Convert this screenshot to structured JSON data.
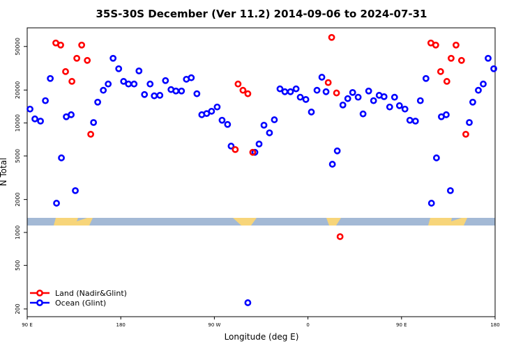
{
  "chart_data": {
    "type": "scatter",
    "title": "35S-30S December (Ver 11.2)   2014-09-06 to 2024-07-31",
    "x_label": "Longitude (deg E)",
    "y_label": "N Total",
    "xlim": [
      90,
      540
    ],
    "ylim": [
      170,
      74000
    ],
    "log_y": true,
    "legend": "bottom-left",
    "xticks": [
      {
        "value": 90,
        "label": "90 E"
      },
      180,
      {
        "value": 270,
        "label": "90 W"
      },
      {
        "value": 360,
        "label": "0"
      },
      {
        "value": 450,
        "label": "90 E"
      },
      {
        "value": 540,
        "label": "180"
      }
    ],
    "yticks": [
      200,
      500,
      1000,
      2000,
      5000,
      10000,
      20000,
      50000
    ],
    "series": [
      {
        "name": "Land (Nadir&Glint)",
        "color": "#ff0000",
        "x": [
          117.5,
          122.2,
          126.9,
          133.0,
          137.7,
          142.4,
          147.8,
          151.1,
          290.1,
          292.8,
          297.5,
          302.2,
          306.9,
          379.5,
          382.8,
          387.5,
          390.9,
          478.2,
          482.9,
          487.6,
          493.6,
          497.7,
          502.4,
          507.7,
          511.8
        ],
        "values": [
          53800,
          51500,
          29500,
          24000,
          39000,
          51500,
          37300,
          7890,
          5720,
          22700,
          19900,
          18500,
          5400,
          23400,
          60500,
          18800,
          916,
          53800,
          51500,
          29500,
          24000,
          39000,
          51500,
          37300,
          7890
        ]
      },
      {
        "name": "Ocean (Glint)",
        "color": "#0000ff",
        "x": [
          92.7,
          97.4,
          102.8,
          107.5,
          112.2,
          118.2,
          122.9,
          127.6,
          132.3,
          136.3,
          153.8,
          157.8,
          163.2,
          167.9,
          172.6,
          178.0,
          182.7,
          187.4,
          192.8,
          197.5,
          202.8,
          208.2,
          212.2,
          217.6,
          223.0,
          228.3,
          233.0,
          238.4,
          243.1,
          247.8,
          253.2,
          257.9,
          262.6,
          267.3,
          272.7,
          277.4,
          282.7,
          286.1,
          302.2,
          309.0,
          313.0,
          317.7,
          323.0,
          327.7,
          333.1,
          337.8,
          343.2,
          348.6,
          352.6,
          358.0,
          363.3,
          368.7,
          373.4,
          377.4,
          383.5,
          388.2,
          393.6,
          398.3,
          403.0,
          408.3,
          413.0,
          418.4,
          423.1,
          428.5,
          433.2,
          438.6,
          443.3,
          448.0,
          453.3,
          458.0,
          463.4,
          468.1,
          473.5,
          478.8,
          483.6,
          488.3,
          493.0,
          497.0,
          515.2,
          518.5,
          523.9,
          528.6,
          533.3,
          538.7
        ],
        "values": [
          13400,
          10900,
          10400,
          16000,
          25500,
          1850,
          4800,
          11400,
          11900,
          2410,
          10100,
          15500,
          19900,
          22700,
          39000,
          31300,
          24000,
          22700,
          22700,
          29900,
          18200,
          22700,
          17700,
          17900,
          24400,
          20200,
          19600,
          19600,
          25100,
          25900,
          18500,
          11900,
          12200,
          12800,
          14000,
          10600,
          9700,
          6150,
          228,
          5400,
          6430,
          9550,
          8130,
          10700,
          20500,
          19300,
          19300,
          20500,
          17200,
          16400,
          12600,
          19900,
          26200,
          19300,
          4200,
          5560,
          14600,
          16700,
          19000,
          17200,
          12100,
          19600,
          16000,
          17900,
          17400,
          14000,
          17200,
          14400,
          13400,
          10600,
          10400,
          16000,
          25500,
          1850,
          4800,
          11400,
          11900,
          2410,
          10100,
          15500,
          19900,
          22700,
          39000,
          31300
        ]
      }
    ]
  }
}
